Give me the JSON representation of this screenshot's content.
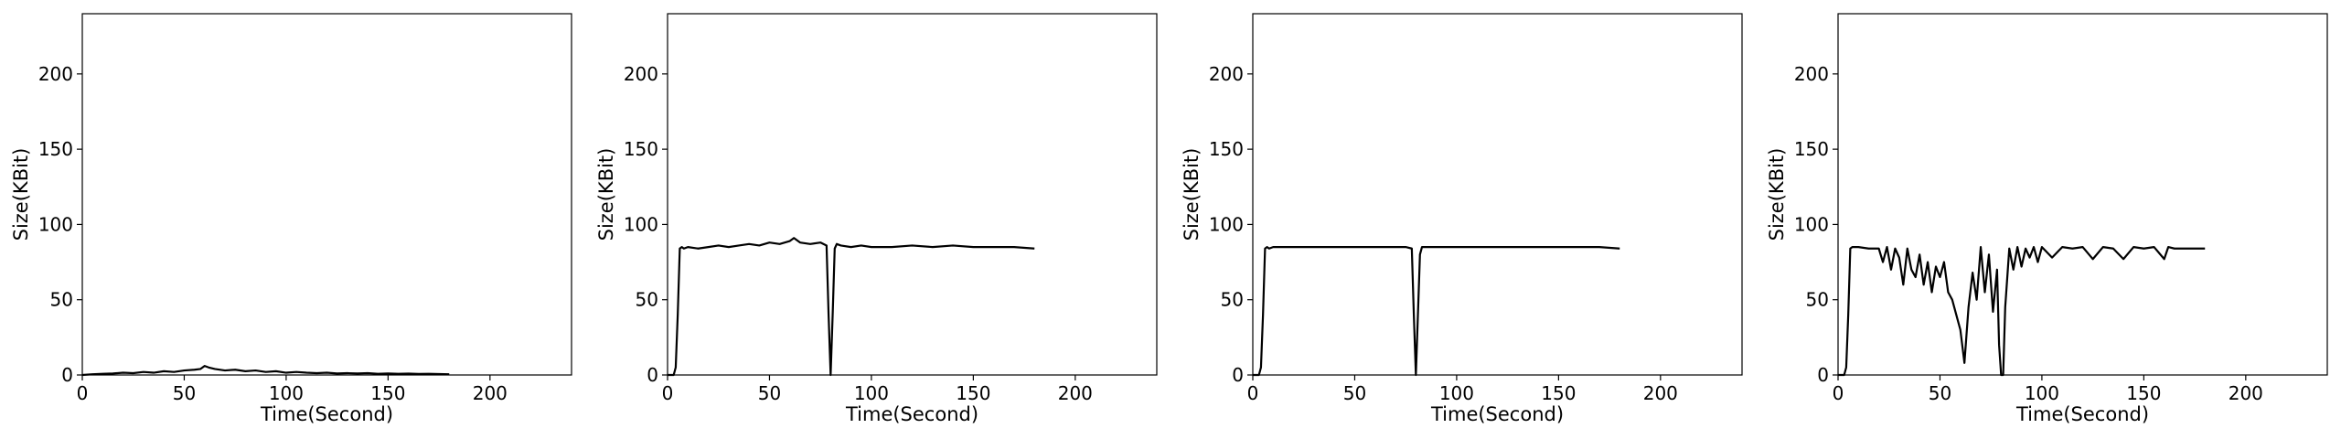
{
  "chart_data": [
    {
      "type": "line",
      "title": "",
      "xlabel": "Time(Second)",
      "ylabel": "Size(KBit)",
      "xlim": [
        0,
        240
      ],
      "ylim": [
        0,
        240
      ],
      "xticks": [
        0,
        50,
        100,
        150,
        200
      ],
      "yticks": [
        0,
        50,
        100,
        150,
        200
      ],
      "grid": false,
      "line_color": "#000000",
      "series": [
        {
          "x": [
            0,
            5,
            10,
            15,
            20,
            25,
            30,
            35,
            40,
            45,
            50,
            55,
            58,
            60,
            62,
            65,
            70,
            75,
            80,
            85,
            90,
            95,
            100,
            105,
            110,
            115,
            120,
            125,
            130,
            135,
            140,
            145,
            150,
            155,
            160,
            165,
            170,
            175,
            180
          ],
          "y": [
            0,
            0.5,
            0.8,
            1,
            1.5,
            1.2,
            2,
            1.5,
            2.5,
            2,
            3,
            3.5,
            4,
            6,
            5,
            4,
            3,
            3.5,
            2.5,
            3,
            2,
            2.5,
            1.5,
            2,
            1.5,
            1.2,
            1.5,
            1,
            1.2,
            1,
            1.2,
            0.8,
            1,
            0.8,
            0.9,
            0.7,
            0.8,
            0.6,
            0.5
          ]
        }
      ]
    },
    {
      "type": "line",
      "title": "",
      "xlabel": "Time(Second)",
      "ylabel": "Size(KBit)",
      "xlim": [
        0,
        240
      ],
      "ylim": [
        0,
        240
      ],
      "xticks": [
        0,
        50,
        100,
        150,
        200
      ],
      "yticks": [
        0,
        50,
        100,
        150,
        200
      ],
      "grid": false,
      "line_color": "#000000",
      "series": [
        {
          "x": [
            0,
            3,
            4,
            5,
            6,
            7,
            8,
            10,
            15,
            20,
            25,
            30,
            35,
            40,
            45,
            50,
            55,
            60,
            62,
            65,
            70,
            75,
            78,
            79,
            80,
            81,
            82,
            83,
            85,
            90,
            95,
            100,
            110,
            120,
            130,
            140,
            150,
            160,
            170,
            180
          ],
          "y": [
            0,
            0,
            5,
            40,
            84,
            85,
            84,
            85,
            84,
            85,
            86,
            85,
            86,
            87,
            86,
            88,
            87,
            89,
            91,
            88,
            87,
            88,
            86,
            40,
            0,
            40,
            84,
            87,
            86,
            85,
            86,
            85,
            85,
            86,
            85,
            86,
            85,
            85,
            85,
            84
          ]
        }
      ]
    },
    {
      "type": "line",
      "title": "",
      "xlabel": "Time(Second)",
      "ylabel": "Size(KBit)",
      "xlim": [
        0,
        240
      ],
      "ylim": [
        0,
        240
      ],
      "xticks": [
        0,
        50,
        100,
        150,
        200
      ],
      "yticks": [
        0,
        50,
        100,
        150,
        200
      ],
      "grid": false,
      "line_color": "#000000",
      "series": [
        {
          "x": [
            0,
            3,
            4,
            5,
            6,
            7,
            8,
            10,
            20,
            30,
            40,
            50,
            60,
            70,
            75,
            78,
            79,
            80,
            81,
            82,
            83,
            85,
            90,
            100,
            110,
            120,
            130,
            140,
            150,
            160,
            170,
            180
          ],
          "y": [
            0,
            0,
            5,
            40,
            84,
            85,
            84,
            85,
            85,
            85,
            85,
            85,
            85,
            85,
            85,
            84,
            40,
            0,
            40,
            80,
            85,
            85,
            85,
            85,
            85,
            85,
            85,
            85,
            85,
            85,
            85,
            84
          ]
        }
      ]
    },
    {
      "type": "line",
      "title": "",
      "xlabel": "Time(Second)",
      "ylabel": "Size(KBit)",
      "xlim": [
        0,
        240
      ],
      "ylim": [
        0,
        240
      ],
      "xticks": [
        0,
        50,
        100,
        150,
        200
      ],
      "yticks": [
        0,
        50,
        100,
        150,
        200
      ],
      "grid": false,
      "line_color": "#000000",
      "series": [
        {
          "x": [
            0,
            3,
            4,
            5,
            6,
            7,
            10,
            15,
            20,
            22,
            24,
            26,
            28,
            30,
            32,
            34,
            36,
            38,
            40,
            42,
            44,
            46,
            48,
            50,
            52,
            54,
            56,
            58,
            60,
            62,
            64,
            66,
            68,
            70,
            72,
            74,
            76,
            78,
            79,
            80,
            81,
            82,
            84,
            86,
            88,
            90,
            92,
            94,
            96,
            98,
            100,
            105,
            110,
            115,
            120,
            125,
            130,
            135,
            140,
            145,
            150,
            155,
            160,
            162,
            165,
            170,
            175,
            180
          ],
          "y": [
            0,
            0,
            5,
            40,
            84,
            85,
            85,
            84,
            84,
            75,
            85,
            70,
            84,
            78,
            60,
            84,
            70,
            65,
            80,
            60,
            75,
            55,
            72,
            65,
            75,
            55,
            50,
            40,
            30,
            8,
            45,
            68,
            50,
            85,
            55,
            80,
            42,
            70,
            20,
            0,
            0,
            45,
            84,
            70,
            85,
            72,
            84,
            78,
            85,
            75,
            85,
            78,
            85,
            84,
            85,
            77,
            85,
            84,
            77,
            85,
            84,
            85,
            77,
            85,
            84,
            84,
            84,
            84
          ]
        }
      ]
    }
  ]
}
